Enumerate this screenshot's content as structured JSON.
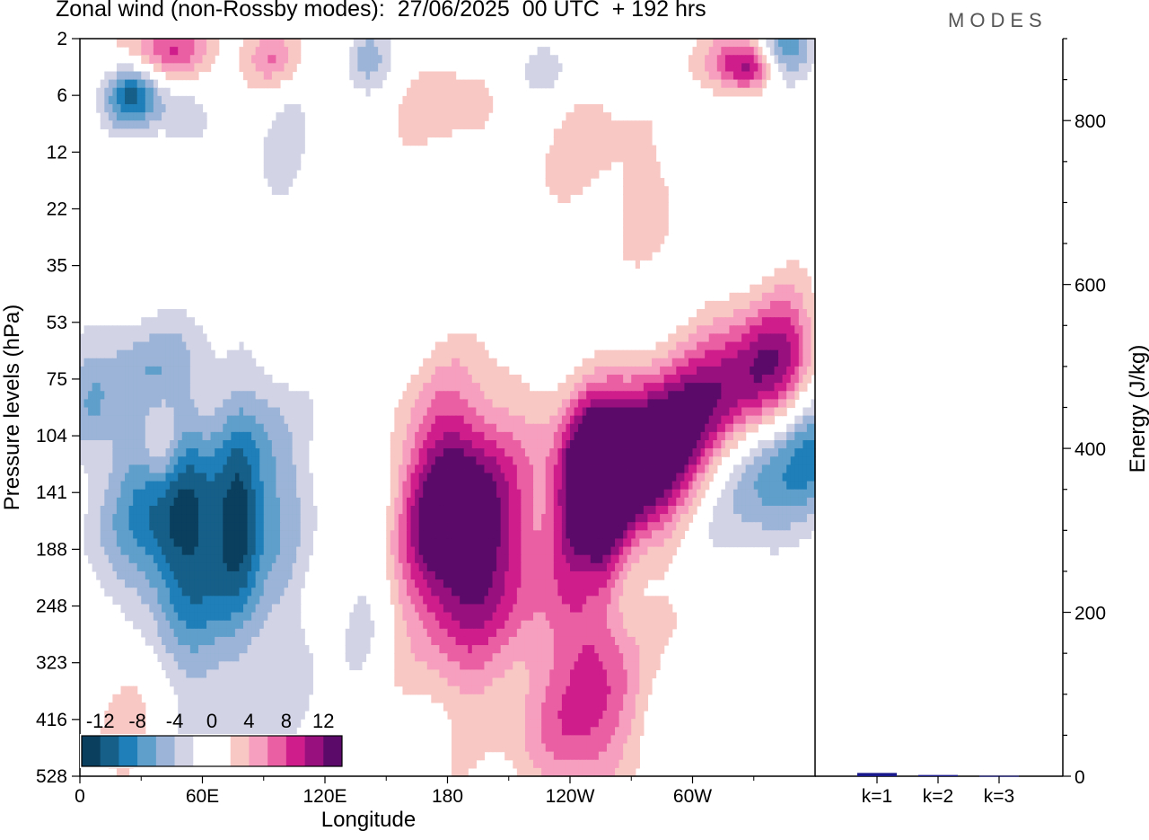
{
  "title": "Zonal wind (non-Rossby modes):  27/06/2025  00 UTC  + 192 hrs",
  "brand": "MODES",
  "colors": {
    "scale": [
      "#0b3f5e",
      "#155f89",
      "#1f7fb8",
      "#5f9fcb",
      "#9bb4d7",
      "#d2d4e6",
      "#ffffff",
      "#ffffff",
      "#f8c8c4",
      "#f79fbe",
      "#ea5fa3",
      "#cf1e8c",
      "#98107e",
      "#5c0a6a"
    ],
    "bar": "#1a1a8c"
  },
  "chart_data": [
    {
      "type": "heatmap",
      "title": "Zonal wind (non-Rossby modes):  27/06/2025  00 UTC  + 192 hrs",
      "xlabel": "Longitude",
      "ylabel": "Pressure levels (hPa)",
      "x_ticks": [
        "0",
        "60E",
        "120E",
        "180",
        "120W",
        "60W"
      ],
      "y_ticks": [
        "2",
        "6",
        "12",
        "22",
        "35",
        "53",
        "75",
        "104",
        "141",
        "188",
        "248",
        "323",
        "416",
        "528"
      ],
      "colorbar_labels": [
        "-12",
        "-8",
        "-4",
        "0",
        "4",
        "8",
        "12"
      ],
      "colorbar_levels": [
        -14,
        -12,
        -10,
        -8,
        -6,
        -4,
        -2,
        0,
        2,
        4,
        6,
        8,
        10,
        12,
        14
      ],
      "features": [
        {
          "lon": 180,
          "level": "141",
          "value": 14
        },
        {
          "lon": 248,
          "level": "141",
          "value": 14
        },
        {
          "lon": 270,
          "level": "104",
          "value": 12
        },
        {
          "lon": 50,
          "level": "141",
          "value": -12
        },
        {
          "lon": 77,
          "level": "141",
          "value": -10
        },
        {
          "lon": 25,
          "level": "6",
          "value": -10
        },
        {
          "lon": 335,
          "level": "104",
          "value": -10
        },
        {
          "lon": 253,
          "level": "323",
          "value": 6
        },
        {
          "lon": 325,
          "level": "2",
          "value": 8
        },
        {
          "lon": 45,
          "level": "2",
          "value": 8
        }
      ]
    },
    {
      "type": "bar",
      "categories": [
        "k=1",
        "k=2",
        "k=3"
      ],
      "values": [
        4,
        1.5,
        0.5
      ],
      "ylabel": "Energy (J/kg)",
      "ylim": [
        0,
        900
      ],
      "y_ticks": [
        "0",
        "200",
        "400",
        "600",
        "800"
      ]
    }
  ]
}
